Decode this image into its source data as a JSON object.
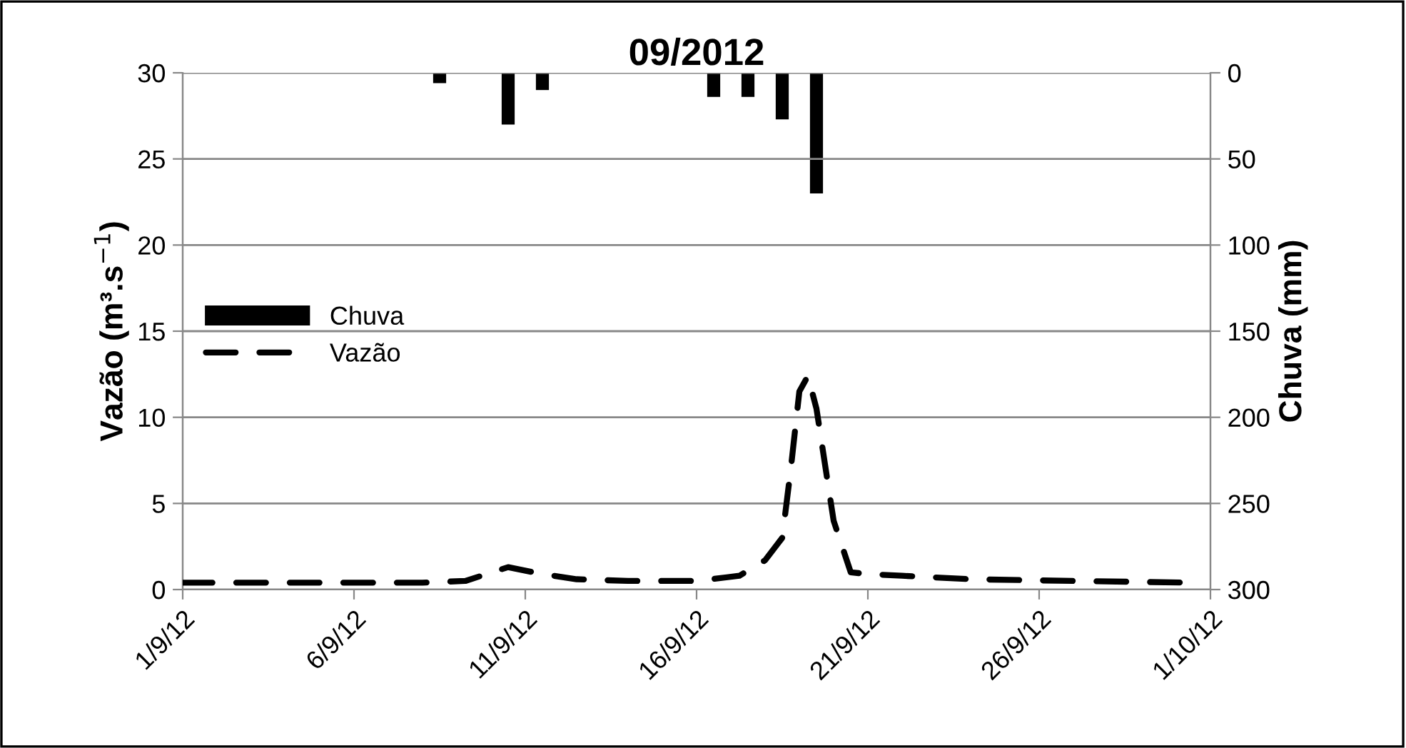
{
  "chart_data": {
    "type": "line",
    "title": "09/2012",
    "ylabel": "Vazão (m³.s$^{−1}$)",
    "y2label": "Chuva (mm)",
    "xlim": [
      "2012-09-01",
      "2012-10-01"
    ],
    "xticks": [
      {
        "value": "2012-09-01",
        "label": "1/9/12"
      },
      {
        "value": "2012-09-06",
        "label": "6/9/12"
      },
      {
        "value": "2012-09-11",
        "label": "11/9/12"
      },
      {
        "value": "2012-09-16",
        "label": "16/9/12"
      },
      {
        "value": "2012-09-21",
        "label": "21/9/12"
      },
      {
        "value": "2012-09-26",
        "label": "26/9/12"
      },
      {
        "value": "2012-10-01",
        "label": "1/10/12"
      }
    ],
    "ylim": [
      0,
      30
    ],
    "yticks": [
      0,
      5,
      10,
      15,
      20,
      25,
      30
    ],
    "y2lim": [
      300,
      0
    ],
    "y2ticks": [
      0,
      50,
      100,
      150,
      200,
      250,
      300
    ],
    "grid": "y",
    "legend": "center left",
    "series": [
      {
        "name": "Chuva",
        "type": "bar",
        "axis": "y2",
        "color": "#000000",
        "x": [
          "2012-09-08T12:00",
          "2012-09-10T12:00",
          "2012-09-11T12:00",
          "2012-09-16T12:00",
          "2012-09-17T12:00",
          "2012-09-18T12:00",
          "2012-09-19T12:00"
        ],
        "values": [
          6,
          30,
          10,
          14,
          14,
          27,
          70
        ]
      },
      {
        "name": "Vazão",
        "line_style": "dashed",
        "color": "#000000",
        "x": [
          "2012-09-01",
          "2012-09-04",
          "2012-09-08",
          "2012-09-09T06:00",
          "2012-09-10T12:00",
          "2012-09-11T12:00",
          "2012-09-12T12:00",
          "2012-09-14",
          "2012-09-16",
          "2012-09-17T06:00",
          "2012-09-18",
          "2012-09-18T12:00",
          "2012-09-18T18:00",
          "2012-09-19",
          "2012-09-19T06:00",
          "2012-09-19T12:00",
          "2012-09-20",
          "2012-09-20T12:00",
          "2012-09-21",
          "2012-09-22",
          "2012-09-24",
          "2012-09-27",
          "2012-09-30T12:00"
        ],
        "values": [
          0.4,
          0.4,
          0.4,
          0.5,
          1.3,
          0.9,
          0.6,
          0.5,
          0.5,
          0.8,
          1.7,
          3,
          7,
          11.5,
          12.4,
          10.5,
          4,
          1,
          0.9,
          0.8,
          0.6,
          0.5,
          0.4
        ]
      }
    ]
  }
}
